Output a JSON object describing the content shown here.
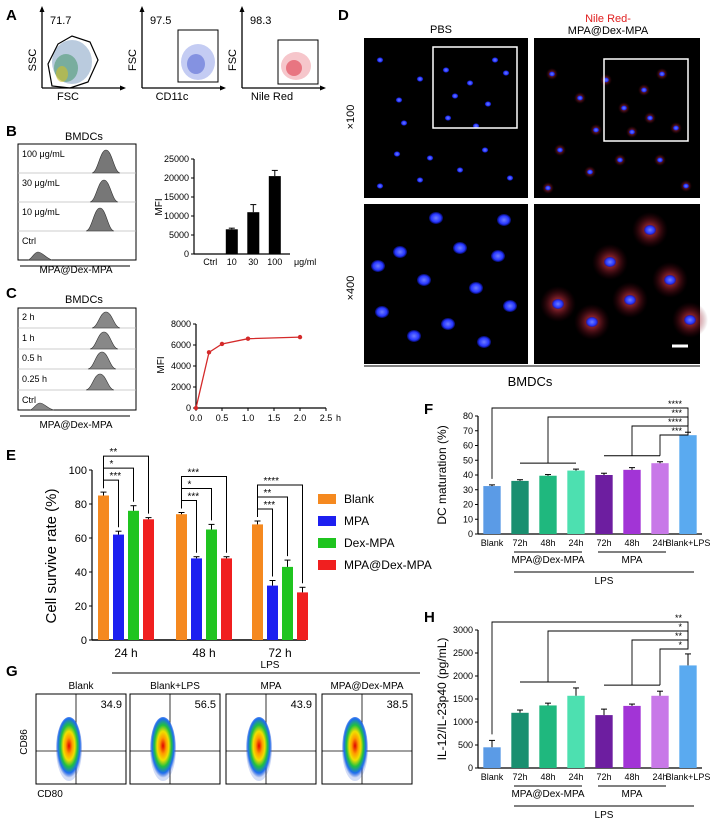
{
  "panelA": {
    "letter": "A",
    "plots": [
      {
        "value": "71.7",
        "xlabel": "FSC",
        "ylabel": "SSC"
      },
      {
        "value": "97.5",
        "xlabel": "CD11c",
        "ylabel": "FSC"
      },
      {
        "value": "98.3",
        "xlabel": "Nile Red",
        "ylabel": "FSC"
      }
    ],
    "colors": {
      "gray": "#556677",
      "blue": "#6b7fd8",
      "red": "#e0505a"
    }
  },
  "panelB": {
    "letter": "B",
    "title": "BMDCs",
    "rows": [
      "100 μg/mL",
      "30 μg/mL",
      "10 μg/mL",
      "Ctrl"
    ],
    "xlabel": "MPA@Dex-MPA"
  },
  "panelC": {
    "letter": "C",
    "title": "BMDCs",
    "rows": [
      "2 h",
      "1 h",
      "0.5 h",
      "0.25 h",
      "Ctrl"
    ],
    "xlabel": "MPA@Dex-MPA"
  },
  "panelD": {
    "letter": "D",
    "col1": "PBS",
    "col2_red": "Nile Red-",
    "col2_black": "MPA@Dex-MPA",
    "row1": "×100",
    "row2": "×400",
    "footer": "BMDCs"
  },
  "panelE": {
    "letter": "E"
  },
  "panelF": {
    "letter": "F"
  },
  "panelG": {
    "letter": "G",
    "lps": "LPS",
    "plots": [
      {
        "title": "Blank",
        "value": "34.9"
      },
      {
        "title": "Blank+LPS",
        "value": "56.5"
      },
      {
        "title": "MPA",
        "value": "43.9"
      },
      {
        "title": "MPA@Dex-MPA",
        "value": "38.5"
      }
    ],
    "ylabel": "CD86",
    "xlabel": "CD80"
  },
  "panelH": {
    "letter": "H"
  },
  "chart_data": [
    {
      "id": "B",
      "type": "bar",
      "categories": [
        "Ctrl",
        "10",
        "30",
        "100"
      ],
      "values": [
        0,
        6500,
        11000,
        20500
      ],
      "errors": [
        0,
        300,
        2000,
        1500
      ],
      "ylabel": "MFI",
      "unit": "μg/ml",
      "yticks": [
        "0",
        "5000",
        "10000",
        "15000",
        "20000",
        "25000"
      ],
      "ylim": [
        0,
        25000
      ],
      "color": "#000000"
    },
    {
      "id": "C",
      "type": "line",
      "x": [
        0,
        0.25,
        0.5,
        1,
        2
      ],
      "y": [
        0,
        5300,
        6100,
        6600,
        6750
      ],
      "ylabel": "MFI",
      "xunit": "h",
      "xticks": [
        "0.0",
        "0.5",
        "1.0",
        "1.5",
        "2.0",
        "2.5"
      ],
      "yticks": [
        "0",
        "2000",
        "4000",
        "6000",
        "8000"
      ],
      "xlim": [
        0,
        2.5
      ],
      "ylim": [
        0,
        8000
      ],
      "color": "#d42a2a"
    },
    {
      "id": "E",
      "type": "bar",
      "ylabel": "Cell survive rate (%)",
      "categories": [
        "24 h",
        "48 h",
        "72 h"
      ],
      "yticks": [
        "0",
        "20",
        "40",
        "60",
        "80",
        "100"
      ],
      "ylim": [
        0,
        100
      ],
      "series": [
        {
          "name": "Blank",
          "values": [
            85,
            74,
            68
          ],
          "errors": [
            2,
            1,
            2
          ],
          "color": "#f5891f"
        },
        {
          "name": "MPA",
          "values": [
            62,
            48,
            32
          ],
          "errors": [
            2,
            1,
            3
          ],
          "color": "#1d1ff0"
        },
        {
          "name": "Dex-MPA",
          "values": [
            76,
            65,
            43
          ],
          "errors": [
            3,
            3,
            4
          ],
          "color": "#1fc41f"
        },
        {
          "name": "MPA@Dex-MPA",
          "values": [
            71,
            48,
            28
          ],
          "errors": [
            1,
            1,
            3
          ],
          "color": "#f01f1f"
        }
      ],
      "significance": [
        {
          "group": 0,
          "to": 1,
          "label": "***"
        },
        {
          "group": 0,
          "to": 2,
          "label": "*"
        },
        {
          "group": 0,
          "to": 3,
          "label": "**"
        },
        {
          "group": 1,
          "to": 1,
          "label": "***"
        },
        {
          "group": 1,
          "to": 2,
          "label": "*"
        },
        {
          "group": 1,
          "to": 3,
          "label": "***"
        },
        {
          "group": 2,
          "to": 1,
          "label": "***"
        },
        {
          "group": 2,
          "to": 2,
          "label": "**"
        },
        {
          "group": 2,
          "to": 3,
          "label": "****"
        }
      ]
    },
    {
      "id": "F",
      "type": "bar",
      "ylabel": "DC maturation (%)",
      "categories": [
        "Blank",
        "72h",
        "48h",
        "24h",
        "72h",
        "48h",
        "24h",
        "Blank+LPS"
      ],
      "values": [
        32.5,
        36,
        39.5,
        43,
        40,
        43.5,
        48,
        67
      ],
      "errors": [
        0.8,
        0.8,
        0.8,
        1,
        1.2,
        1.5,
        1,
        2
      ],
      "colors": [
        "#5b9be6",
        "#1a8f70",
        "#1fb87e",
        "#4de0b0",
        "#6d1ea0",
        "#a234d6",
        "#c878e8",
        "#5aaaf0"
      ],
      "yticks": [
        "0",
        "10",
        "20",
        "30",
        "40",
        "50",
        "60",
        "70",
        "80"
      ],
      "ylim": [
        0,
        80
      ],
      "group1": "MPA@Dex-MPA",
      "group2": "MPA",
      "group_lps": "LPS",
      "significance": [
        "****",
        "***",
        "****",
        "***"
      ]
    },
    {
      "id": "H",
      "type": "bar",
      "ylabel": "IL-12/IL-23p40 (pg/mL)",
      "categories": [
        "Blank",
        "72h",
        "48h",
        "24h",
        "72h",
        "48h",
        "24h",
        "Blank+LPS"
      ],
      "values": [
        450,
        1200,
        1360,
        1570,
        1150,
        1350,
        1570,
        2230
      ],
      "errors": [
        150,
        60,
        50,
        170,
        130,
        40,
        100,
        250
      ],
      "colors": [
        "#5b9be6",
        "#1a8f70",
        "#1fb87e",
        "#4de0b0",
        "#6d1ea0",
        "#a234d6",
        "#c878e8",
        "#5aaaf0"
      ],
      "yticks": [
        "0",
        "500",
        "1000",
        "1500",
        "2000",
        "2500",
        "3000"
      ],
      "ylim": [
        0,
        3000
      ],
      "group1": "MPA@Dex-MPA",
      "group2": "MPA",
      "group_lps": "LPS",
      "significance": [
        "**",
        "*",
        "**",
        "*"
      ]
    }
  ]
}
